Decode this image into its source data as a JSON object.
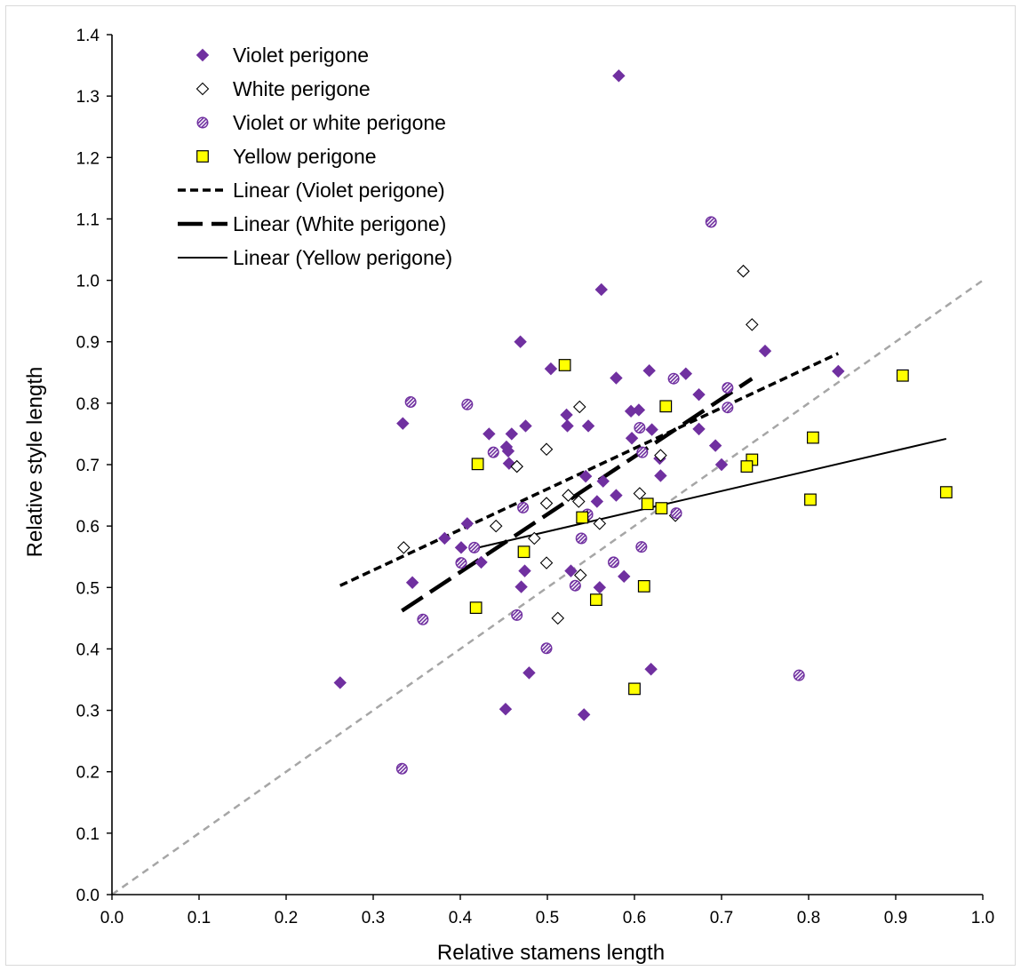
{
  "chart_data": {
    "type": "scatter",
    "xlabel": "Relative stamens length",
    "ylabel": "Relative style length",
    "xlim": [
      0,
      1.0
    ],
    "ylim": [
      0,
      1.4
    ],
    "x_ticks": [
      "0.0",
      "0.1",
      "0.2",
      "0.3",
      "0.4",
      "0.5",
      "0.6",
      "0.7",
      "0.8",
      "0.9",
      "1.0"
    ],
    "y_ticks": [
      "0.0",
      "0.1",
      "0.2",
      "0.3",
      "0.4",
      "0.5",
      "0.6",
      "0.7",
      "0.8",
      "0.9",
      "1.0",
      "1.1",
      "1.2",
      "1.3",
      "1.4"
    ],
    "grid": false,
    "legend_position": "top-left",
    "colors": {
      "violet": "#7030a0",
      "yellow": "#ffff00",
      "white": "#ffffff",
      "reference": "#a6a6a6"
    },
    "series": [
      {
        "name": "Violet perigone",
        "marker": "diamond-filled",
        "points": [
          [
            0.582,
            1.333
          ],
          [
            0.562,
            0.985
          ],
          [
            0.469,
            0.9
          ],
          [
            0.75,
            0.885
          ],
          [
            0.834,
            0.852
          ],
          [
            0.617,
            0.853
          ],
          [
            0.659,
            0.848
          ],
          [
            0.504,
            0.856
          ],
          [
            0.579,
            0.841
          ],
          [
            0.674,
            0.814
          ],
          [
            0.522,
            0.781
          ],
          [
            0.596,
            0.787
          ],
          [
            0.605,
            0.789
          ],
          [
            0.334,
            0.767
          ],
          [
            0.475,
            0.763
          ],
          [
            0.523,
            0.763
          ],
          [
            0.547,
            0.763
          ],
          [
            0.62,
            0.757
          ],
          [
            0.674,
            0.758
          ],
          [
            0.433,
            0.75
          ],
          [
            0.459,
            0.75
          ],
          [
            0.597,
            0.743
          ],
          [
            0.693,
            0.731
          ],
          [
            0.453,
            0.729
          ],
          [
            0.455,
            0.722
          ],
          [
            0.629,
            0.71
          ],
          [
            0.456,
            0.702
          ],
          [
            0.7,
            0.7
          ],
          [
            0.544,
            0.681
          ],
          [
            0.63,
            0.682
          ],
          [
            0.564,
            0.673
          ],
          [
            0.579,
            0.65
          ],
          [
            0.557,
            0.64
          ],
          [
            0.408,
            0.604
          ],
          [
            0.382,
            0.58
          ],
          [
            0.401,
            0.565
          ],
          [
            0.424,
            0.541
          ],
          [
            0.474,
            0.527
          ],
          [
            0.527,
            0.527
          ],
          [
            0.588,
            0.518
          ],
          [
            0.345,
            0.508
          ],
          [
            0.47,
            0.501
          ],
          [
            0.56,
            0.5
          ],
          [
            0.479,
            0.361
          ],
          [
            0.619,
            0.367
          ],
          [
            0.262,
            0.345
          ],
          [
            0.452,
            0.302
          ],
          [
            0.542,
            0.293
          ]
        ]
      },
      {
        "name": "White perigone",
        "marker": "diamond-open",
        "points": [
          [
            0.725,
            1.015
          ],
          [
            0.735,
            0.928
          ],
          [
            0.537,
            0.794
          ],
          [
            0.499,
            0.725
          ],
          [
            0.465,
            0.697
          ],
          [
            0.63,
            0.715
          ],
          [
            0.499,
            0.637
          ],
          [
            0.524,
            0.65
          ],
          [
            0.536,
            0.64
          ],
          [
            0.606,
            0.653
          ],
          [
            0.545,
            0.615
          ],
          [
            0.56,
            0.604
          ],
          [
            0.441,
            0.6
          ],
          [
            0.647,
            0.617
          ],
          [
            0.335,
            0.565
          ],
          [
            0.485,
            0.58
          ],
          [
            0.499,
            0.54
          ],
          [
            0.538,
            0.52
          ],
          [
            0.512,
            0.45
          ]
        ]
      },
      {
        "name": "Violet or white perigone",
        "marker": "circle-hatched",
        "points": [
          [
            0.688,
            1.095
          ],
          [
            0.343,
            0.802
          ],
          [
            0.408,
            0.798
          ],
          [
            0.645,
            0.84
          ],
          [
            0.707,
            0.825
          ],
          [
            0.707,
            0.793
          ],
          [
            0.606,
            0.76
          ],
          [
            0.438,
            0.72
          ],
          [
            0.609,
            0.72
          ],
          [
            0.472,
            0.63
          ],
          [
            0.546,
            0.619
          ],
          [
            0.648,
            0.621
          ],
          [
            0.539,
            0.58
          ],
          [
            0.416,
            0.565
          ],
          [
            0.608,
            0.566
          ],
          [
            0.401,
            0.54
          ],
          [
            0.576,
            0.541
          ],
          [
            0.532,
            0.503
          ],
          [
            0.465,
            0.455
          ],
          [
            0.357,
            0.448
          ],
          [
            0.499,
            0.401
          ],
          [
            0.789,
            0.357
          ],
          [
            0.333,
            0.205
          ]
        ]
      },
      {
        "name": "Yellow perigone",
        "marker": "square-filled",
        "points": [
          [
            0.52,
            0.862
          ],
          [
            0.908,
            0.845
          ],
          [
            0.636,
            0.795
          ],
          [
            0.805,
            0.744
          ],
          [
            0.42,
            0.701
          ],
          [
            0.735,
            0.708
          ],
          [
            0.729,
            0.697
          ],
          [
            0.958,
            0.655
          ],
          [
            0.802,
            0.643
          ],
          [
            0.615,
            0.636
          ],
          [
            0.631,
            0.629
          ],
          [
            0.54,
            0.614
          ],
          [
            0.473,
            0.558
          ],
          [
            0.611,
            0.502
          ],
          [
            0.556,
            0.48
          ],
          [
            0.418,
            0.467
          ],
          [
            0.6,
            0.335
          ]
        ]
      }
    ],
    "trendlines": [
      {
        "name": "Linear (Violet perigone)",
        "style": "short-dash",
        "from": [
          0.262,
          0.503
        ],
        "to": [
          0.834,
          0.881
        ]
      },
      {
        "name": "Linear (White perigone)",
        "style": "long-dash",
        "from": [
          0.333,
          0.462
        ],
        "to": [
          0.735,
          0.84
        ]
      },
      {
        "name": "Linear (Yellow perigone)",
        "style": "solid",
        "from": [
          0.418,
          0.564
        ],
        "to": [
          0.958,
          0.742
        ]
      }
    ],
    "reference_line": {
      "style": "grey-dash",
      "from": [
        0,
        0
      ],
      "to": [
        1.0,
        1.0
      ]
    }
  }
}
